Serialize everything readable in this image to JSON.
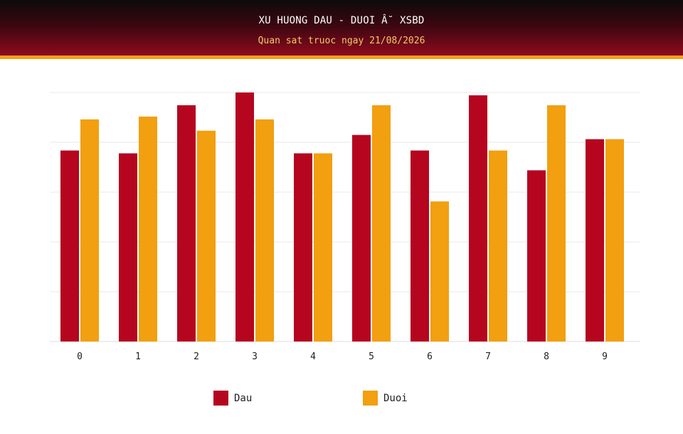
{
  "header": {
    "title": "XU HUONG DAU - DUOI Â˘ XSBD",
    "subtitle": "Quan sat truoc ngay 21/08/2026"
  },
  "colors": {
    "dau": "#b5051f",
    "duoi": "#f29f10"
  },
  "chart_data": {
    "type": "bar",
    "title": "XU HUONG DAU - DUOI Â˘ XSBD",
    "subtitle": "Quan sat truoc ngay 21/08/2026",
    "categories": [
      "0",
      "1",
      "2",
      "3",
      "4",
      "5",
      "6",
      "7",
      "8",
      "9"
    ],
    "series": [
      {
        "name": "Dau",
        "values": [
          13.5,
          13.3,
          16.7,
          17.6,
          13.3,
          14.6,
          13.5,
          17.4,
          12.1,
          14.3
        ]
      },
      {
        "name": "Duoi",
        "values": [
          15.7,
          15.9,
          14.9,
          15.7,
          13.3,
          16.7,
          9.9,
          13.5,
          16.7,
          14.3
        ]
      }
    ],
    "ylim": [
      0,
      17.6
    ],
    "grid": true,
    "legend_position": "bottom"
  }
}
